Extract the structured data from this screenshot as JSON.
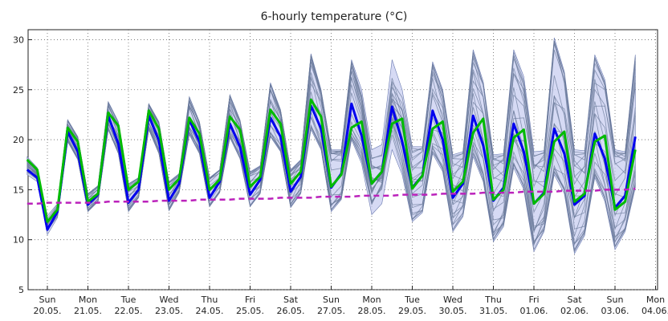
{
  "chart_data": {
    "type": "line",
    "title": "6-hourly temperature (°C)",
    "xlabel": "",
    "ylabel": "",
    "ylim": [
      5,
      31
    ],
    "yticks": [
      5,
      10,
      15,
      20,
      25,
      30
    ],
    "x_tick_labels": [
      {
        "day": "Sun",
        "date": "20.05."
      },
      {
        "day": "Mon",
        "date": "21.05."
      },
      {
        "day": "Tue",
        "date": "22.05."
      },
      {
        "day": "Wed",
        "date": "23.05."
      },
      {
        "day": "Thu",
        "date": "24.05."
      },
      {
        "day": "Fri",
        "date": "25.05."
      },
      {
        "day": "Sat",
        "date": "26.05."
      },
      {
        "day": "Sun",
        "date": "27.05."
      },
      {
        "day": "Mon",
        "date": "28.05."
      },
      {
        "day": "Tue",
        "date": "29.05."
      },
      {
        "day": "Wed",
        "date": "30.05."
      },
      {
        "day": "Thu",
        "date": "31.05."
      },
      {
        "day": "Fri",
        "date": "01.06."
      },
      {
        "day": "Sat",
        "date": "02.06."
      },
      {
        "day": "Sun",
        "date": "03.06."
      },
      {
        "day": "Mon",
        "date": "04.06."
      }
    ],
    "grid": true,
    "legend": "none",
    "x_start_offset_days": -0.5,
    "step_days": 0.25,
    "colors": {
      "main": "#0000ee",
      "control": "#00bb00",
      "climate": "#bb22bb",
      "ensemble": "#6a7a9a",
      "spread_fill": "#c8cdf0"
    },
    "series": [
      {
        "role": "main",
        "values": [
          17.0,
          16.2,
          11.0,
          12.8,
          20.8,
          18.8,
          13.5,
          14.5,
          22.4,
          19.6,
          13.7,
          15.0,
          22.4,
          19.9,
          13.9,
          15.6,
          22.0,
          19.8,
          14.2,
          15.8,
          21.6,
          19.3,
          14.5,
          16.0,
          22.2,
          20.3,
          14.8,
          16.3,
          23.4,
          21.1,
          15.2,
          16.6,
          23.6,
          20.4,
          15.6,
          16.8,
          23.3,
          19.8,
          15.2,
          16.4,
          22.9,
          20.0,
          14.2,
          15.6,
          22.4,
          19.4,
          13.9,
          15.2,
          21.6,
          18.8,
          13.6,
          14.7,
          21.1,
          18.6,
          13.5,
          14.4,
          20.6,
          18.1,
          13.2,
          14.4,
          20.3
        ]
      },
      {
        "role": "control",
        "values": [
          18.0,
          17.0,
          11.8,
          13.0,
          21.2,
          19.8,
          13.8,
          14.6,
          22.7,
          21.4,
          15.0,
          15.8,
          22.9,
          21.1,
          15.0,
          16.1,
          22.2,
          20.6,
          15.0,
          16.0,
          22.3,
          21.0,
          15.3,
          16.3,
          23.0,
          21.6,
          15.6,
          16.8,
          24.0,
          22.3,
          15.3,
          16.5,
          21.2,
          21.8,
          15.6,
          16.8,
          21.6,
          22.1,
          15.1,
          16.4,
          21.1,
          21.8,
          14.8,
          15.8,
          20.7,
          22.1,
          14.0,
          15.0,
          20.2,
          21.0,
          13.6,
          14.6,
          19.8,
          20.8,
          13.8,
          14.6,
          19.8,
          20.4,
          13.0,
          13.8,
          19.0
        ]
      },
      {
        "role": "climate",
        "values": [
          13.6,
          13.6,
          13.7,
          13.7,
          13.7,
          13.7,
          13.7,
          13.7,
          13.8,
          13.8,
          13.8,
          13.8,
          13.8,
          13.9,
          13.9,
          13.9,
          13.9,
          14.0,
          14.0,
          14.0,
          14.0,
          14.1,
          14.1,
          14.1,
          14.1,
          14.2,
          14.2,
          14.2,
          14.2,
          14.3,
          14.3,
          14.3,
          14.3,
          14.4,
          14.4,
          14.4,
          14.4,
          14.5,
          14.5,
          14.5,
          14.5,
          14.6,
          14.6,
          14.6,
          14.6,
          14.7,
          14.7,
          14.7,
          14.7,
          14.8,
          14.8,
          14.8,
          14.8,
          14.9,
          14.9,
          14.9,
          14.9,
          15.0,
          15.0,
          15.0,
          15.1
        ]
      }
    ],
    "ensemble_spread": [
      [
        16.5,
        18.3
      ],
      [
        15.8,
        17.2
      ],
      [
        10.5,
        12.4
      ],
      [
        12.2,
        13.6
      ],
      [
        19.8,
        22.0
      ],
      [
        18.0,
        20.3
      ],
      [
        12.8,
        14.6
      ],
      [
        13.8,
        15.4
      ],
      [
        21.0,
        23.8
      ],
      [
        18.6,
        21.8
      ],
      [
        12.8,
        15.6
      ],
      [
        14.2,
        16.2
      ],
      [
        21.0,
        23.6
      ],
      [
        18.6,
        21.8
      ],
      [
        12.9,
        15.8
      ],
      [
        14.7,
        16.6
      ],
      [
        20.5,
        24.3
      ],
      [
        18.6,
        21.8
      ],
      [
        13.3,
        16.2
      ],
      [
        14.7,
        17.0
      ],
      [
        20.2,
        24.5
      ],
      [
        18.1,
        22.0
      ],
      [
        13.3,
        16.8
      ],
      [
        14.6,
        17.4
      ],
      [
        20.3,
        25.7
      ],
      [
        18.8,
        23.0
      ],
      [
        13.2,
        17.0
      ],
      [
        14.6,
        18.0
      ],
      [
        21.0,
        28.6
      ],
      [
        19.0,
        25.0
      ],
      [
        12.8,
        19.0
      ],
      [
        14.0,
        19.0
      ],
      [
        20.0,
        28.0
      ],
      [
        17.6,
        25.0
      ],
      [
        12.5,
        19.0
      ],
      [
        13.6,
        19.5
      ],
      [
        19.0,
        28.0
      ],
      [
        16.5,
        25.0
      ],
      [
        11.8,
        19.3
      ],
      [
        12.7,
        19.3
      ],
      [
        18.6,
        27.8
      ],
      [
        16.8,
        25.0
      ],
      [
        10.8,
        18.5
      ],
      [
        12.3,
        18.8
      ],
      [
        18.3,
        29.0
      ],
      [
        15.8,
        25.8
      ],
      [
        9.8,
        18.5
      ],
      [
        11.3,
        18.6
      ],
      [
        17.2,
        29.0
      ],
      [
        15.0,
        26.3
      ],
      [
        8.8,
        18.8
      ],
      [
        10.8,
        18.9
      ],
      [
        16.5,
        30.2
      ],
      [
        14.6,
        26.8
      ],
      [
        8.6,
        19.0
      ],
      [
        10.4,
        18.9
      ],
      [
        16.2,
        28.5
      ],
      [
        13.8,
        26.0
      ],
      [
        9.0,
        19.0
      ],
      [
        10.8,
        18.8
      ],
      [
        15.2,
        28.5
      ]
    ]
  }
}
